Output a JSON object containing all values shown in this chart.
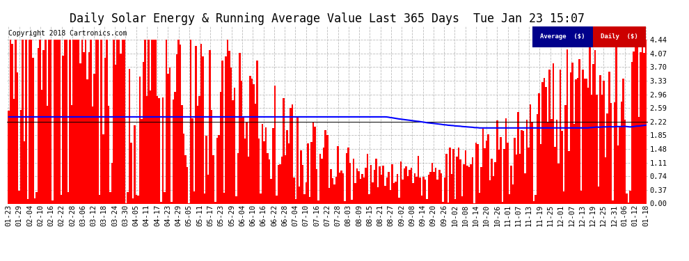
{
  "title": "Daily Solar Energy & Running Average Value Last 365 Days  Tue Jan 23 15:07",
  "copyright": "Copyright 2018 Cartronics.com",
  "ylim": [
    0.0,
    4.81
  ],
  "ytick_vals": [
    0.0,
    0.37,
    0.74,
    1.11,
    1.48,
    1.85,
    2.22,
    2.59,
    2.96,
    3.33,
    3.7,
    4.07,
    4.44
  ],
  "bar_color": "#FF0000",
  "avg_line_color": "#0000FF",
  "bg_color": "#FFFFFF",
  "grid_color": "#BBBBBB",
  "legend_avg_color": "#00008B",
  "legend_daily_color": "#CC0000",
  "legend_avg_text": "Average  ($)",
  "legend_daily_text": "Daily  ($)",
  "title_fontsize": 12,
  "copyright_fontsize": 7,
  "tick_fontsize": 7.5,
  "avg_line_value": 2.22,
  "n_days": 365,
  "x_labels": [
    "01-23",
    "01-29",
    "02-04",
    "02-10",
    "02-16",
    "02-22",
    "02-28",
    "03-06",
    "03-12",
    "03-18",
    "03-24",
    "03-30",
    "04-05",
    "04-11",
    "04-17",
    "04-23",
    "04-29",
    "05-05",
    "05-11",
    "05-17",
    "05-23",
    "05-29",
    "06-04",
    "06-10",
    "06-16",
    "06-22",
    "06-28",
    "07-04",
    "07-10",
    "07-16",
    "07-22",
    "07-28",
    "08-03",
    "08-09",
    "08-15",
    "08-21",
    "08-27",
    "09-02",
    "09-08",
    "09-14",
    "09-20",
    "09-26",
    "10-02",
    "10-08",
    "10-14",
    "10-20",
    "10-26",
    "11-01",
    "11-07",
    "11-13",
    "11-19",
    "11-25",
    "12-01",
    "12-07",
    "12-13",
    "12-19",
    "12-25",
    "12-31",
    "01-06",
    "01-12",
    "01-18"
  ]
}
